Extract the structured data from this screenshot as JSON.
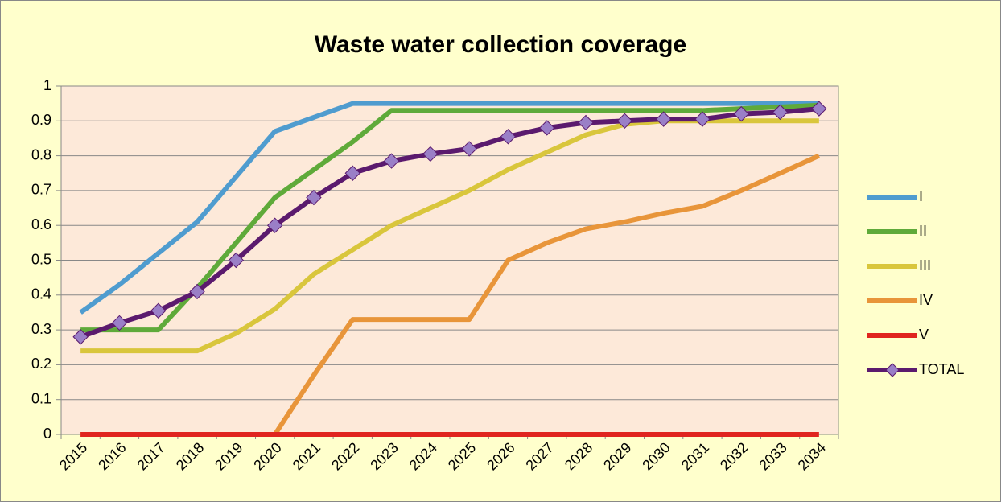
{
  "chart_data": {
    "type": "line",
    "title": "Waste water collection coverage",
    "categories": [
      "2015",
      "2016",
      "2017",
      "2018",
      "2019",
      "2020",
      "2021",
      "2022",
      "2023",
      "2024",
      "2025",
      "2026",
      "2027",
      "2028",
      "2029",
      "2030",
      "2031",
      "2032",
      "2033",
      "2034"
    ],
    "series": [
      {
        "name": "I",
        "color": "#4f9ccf",
        "values": [
          0.35,
          0.43,
          0.52,
          0.61,
          0.74,
          0.87,
          0.91,
          0.95,
          0.95,
          0.95,
          0.95,
          0.95,
          0.95,
          0.95,
          0.95,
          0.95,
          0.95,
          0.95,
          0.95,
          0.95
        ]
      },
      {
        "name": "II",
        "color": "#5faa3a",
        "values": [
          0.3,
          0.3,
          0.3,
          0.42,
          0.55,
          0.68,
          0.76,
          0.84,
          0.93,
          0.93,
          0.93,
          0.93,
          0.93,
          0.93,
          0.93,
          0.93,
          0.93,
          0.935,
          0.94,
          0.945
        ]
      },
      {
        "name": "III",
        "color": "#d9c63c",
        "values": [
          0.24,
          0.24,
          0.24,
          0.24,
          0.29,
          0.36,
          0.46,
          0.53,
          0.6,
          0.65,
          0.7,
          0.76,
          0.81,
          0.86,
          0.89,
          0.9,
          0.9,
          0.9,
          0.9,
          0.9
        ]
      },
      {
        "name": "IV",
        "color": "#e8953a",
        "values": [
          0,
          0,
          0,
          0,
          0,
          0,
          0.17,
          0.33,
          0.33,
          0.33,
          0.33,
          0.5,
          0.55,
          0.59,
          0.61,
          0.635,
          0.655,
          0.7,
          0.75,
          0.8
        ]
      },
      {
        "name": "V",
        "color": "#e0251f",
        "values": [
          0,
          0,
          0,
          0,
          0,
          0,
          0,
          0,
          0,
          0,
          0,
          0,
          0,
          0,
          0,
          0,
          0,
          0,
          0,
          0
        ]
      },
      {
        "name": "TOTAL",
        "color": "#5b1a6e",
        "marker": "diamond",
        "marker_color": "#9a7fc7",
        "values": [
          0.28,
          0.32,
          0.355,
          0.41,
          0.5,
          0.6,
          0.68,
          0.75,
          0.785,
          0.805,
          0.82,
          0.855,
          0.88,
          0.895,
          0.9,
          0.905,
          0.905,
          0.92,
          0.925,
          0.935
        ]
      }
    ],
    "ylim": [
      0,
      1
    ],
    "yticks": [
      0,
      0.1,
      0.2,
      0.3,
      0.4,
      0.5,
      0.6,
      0.7,
      0.8,
      0.9,
      1
    ],
    "grid": true,
    "legend": "right"
  }
}
